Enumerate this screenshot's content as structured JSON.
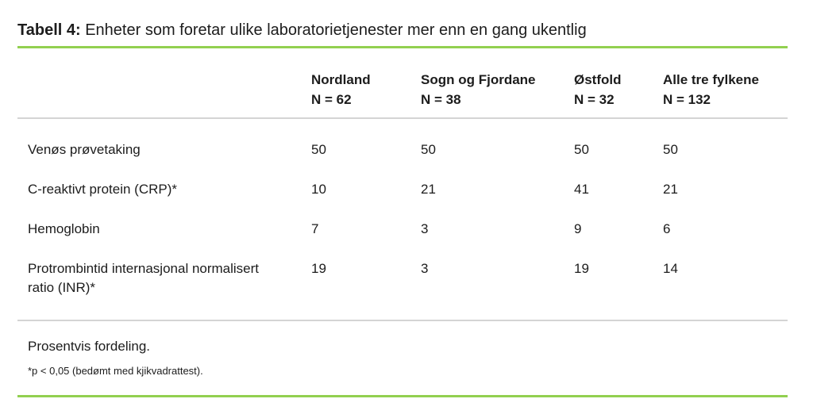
{
  "title": {
    "label": "Tabell 4:",
    "text": "Enheter som foretar ulike laboratorietjenester mer enn en gang ukentlig"
  },
  "table": {
    "columns": [
      {
        "name": "Nordland",
        "n": "N = 62"
      },
      {
        "name": "Sogn og Fjordane",
        "n": "N = 38"
      },
      {
        "name": "Østfold",
        "n": "N = 32"
      },
      {
        "name": "Alle tre fylkene",
        "n": "N = 132"
      }
    ],
    "rows": [
      {
        "label": "Venøs prøvetaking",
        "values": [
          "50",
          "50",
          "50",
          "50"
        ]
      },
      {
        "label": "C-reaktivt protein (CRP)*",
        "values": [
          "10",
          "21",
          "41",
          "21"
        ]
      },
      {
        "label": "Hemoglobin",
        "values": [
          "7",
          "3",
          "9",
          "6"
        ]
      },
      {
        "label": "Protrombintid internasjonal normalisert ratio (INR)*",
        "values": [
          "19",
          "3",
          "19",
          "14"
        ]
      }
    ]
  },
  "footer": {
    "note": "Prosentvis fordeling.",
    "footnote": "*p < 0,05 (bedømt med kjikvadrattest)."
  },
  "colors": {
    "accent_green": "#92d050",
    "divider_gray": "#d4d4d4",
    "text": "#1c1c1c"
  }
}
